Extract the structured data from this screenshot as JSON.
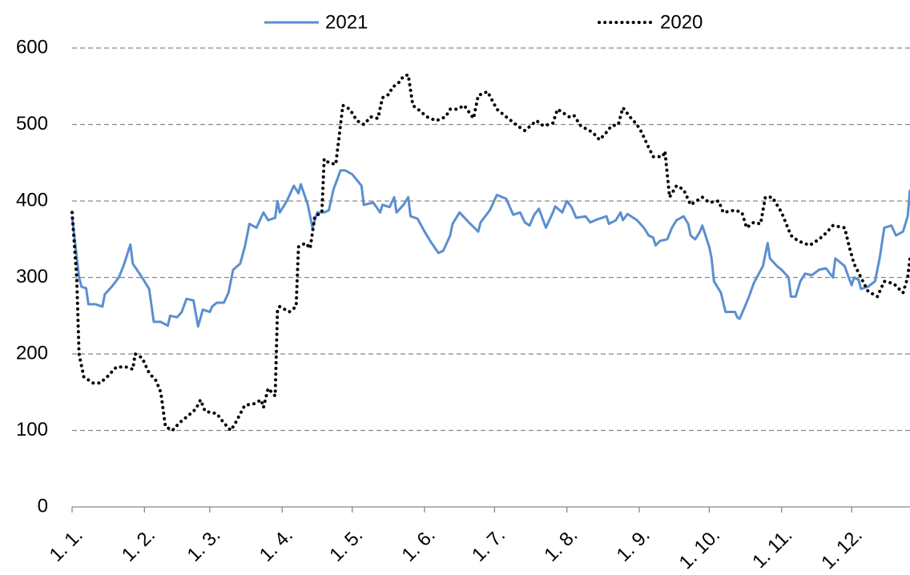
{
  "chart_data": {
    "type": "line",
    "series": [
      {
        "name": "2021",
        "color": "#5b8fd0",
        "line_style": "solid",
        "x": [
          0,
          3,
          4,
          6,
          7,
          10,
          13,
          14,
          17,
          20,
          22,
          25,
          26,
          30,
          33,
          35,
          38,
          41,
          42,
          45,
          47,
          49,
          52,
          54,
          56,
          59,
          60,
          62,
          65,
          67,
          69,
          72,
          74,
          76,
          79,
          82,
          84,
          87,
          88,
          89,
          92,
          95,
          97,
          98,
          101,
          103,
          105,
          108,
          110,
          112,
          115,
          117,
          120,
          124,
          125,
          129,
          132,
          133,
          136,
          138,
          139,
          142,
          144,
          145,
          148,
          151,
          154,
          157,
          159,
          162,
          163,
          166,
          170,
          174,
          175,
          179,
          182,
          186,
          189,
          192,
          194,
          196,
          198,
          200,
          203,
          206,
          207,
          210,
          212,
          214,
          216,
          220,
          222,
          225,
          229,
          230,
          233,
          235,
          236,
          238,
          242,
          245,
          247,
          249,
          250,
          252,
          255,
          257,
          259,
          262,
          264,
          265,
          267,
          269,
          270,
          273,
          274,
          275,
          277,
          278,
          280,
          284,
          285,
          286,
          288,
          290,
          292,
          293,
          296,
          298,
          299,
          302,
          304,
          307,
          308,
          310,
          312,
          313,
          314,
          317,
          320,
          323,
          326,
          327,
          331,
          333,
          334,
          335,
          337,
          338,
          341,
          344,
          346,
          348,
          351,
          353,
          356,
          358,
          359
        ],
        "values": [
          380,
          300,
          288,
          286,
          265,
          265,
          262,
          278,
          288,
          300,
          315,
          343,
          318,
          300,
          285,
          242,
          242,
          237,
          250,
          248,
          255,
          272,
          270,
          236,
          258,
          255,
          262,
          267,
          267,
          280,
          310,
          318,
          340,
          370,
          365,
          385,
          375,
          378,
          400,
          385,
          400,
          420,
          410,
          422,
          395,
          365,
          385,
          385,
          388,
          415,
          440,
          440,
          435,
          420,
          395,
          398,
          385,
          395,
          392,
          405,
          385,
          395,
          405,
          380,
          377,
          360,
          345,
          332,
          335,
          355,
          370,
          385,
          372,
          360,
          372,
          388,
          408,
          403,
          382,
          385,
          372,
          368,
          382,
          390,
          365,
          385,
          393,
          385,
          400,
          392,
          378,
          380,
          372,
          376,
          380,
          370,
          375,
          385,
          375,
          383,
          375,
          365,
          355,
          352,
          342,
          348,
          350,
          365,
          375,
          380,
          370,
          355,
          350,
          360,
          368,
          340,
          325,
          295,
          285,
          280,
          255,
          255,
          248,
          246,
          260,
          275,
          292,
          298,
          315,
          345,
          325,
          315,
          310,
          300,
          275,
          275,
          295,
          300,
          305,
          303,
          310,
          312,
          300,
          325,
          315,
          298,
          290,
          300,
          297,
          285,
          288,
          295,
          325,
          365,
          368,
          355,
          360,
          380,
          415
        ]
      },
      {
        "name": "2020",
        "color": "#000000",
        "line_style": "dotted",
        "x": [
          0,
          2,
          3,
          5,
          9,
          12,
          15,
          19,
          23,
          26,
          27,
          30,
          33,
          36,
          38,
          40,
          43,
          46,
          50,
          53,
          55,
          57,
          62,
          65,
          68,
          70,
          74,
          78,
          81,
          82,
          84,
          87,
          88,
          89,
          93,
          96,
          97,
          100,
          102,
          104,
          107,
          108,
          110,
          113,
          116,
          119,
          122,
          125,
          128,
          131,
          133,
          136,
          137,
          140,
          142,
          144,
          146,
          149,
          152,
          156,
          160,
          162,
          165,
          168,
          172,
          174,
          178,
          182,
          186,
          191,
          194,
          199,
          202,
          206,
          208,
          213,
          215,
          218,
          223,
          226,
          229,
          231,
          234,
          236,
          239,
          242,
          244,
          247,
          249,
          253,
          254,
          256,
          259,
          262,
          265,
          270,
          273,
          277,
          279,
          284,
          287,
          289,
          292,
          295,
          297,
          300,
          304,
          308,
          311,
          316,
          320,
          323,
          326,
          331,
          333,
          335,
          338,
          341,
          345,
          348,
          352,
          356,
          358,
          359
        ],
        "values": [
          385,
          300,
          200,
          170,
          162,
          162,
          170,
          183,
          183,
          180,
          200,
          195,
          175,
          165,
          150,
          105,
          100,
          110,
          120,
          128,
          140,
          125,
          122,
          110,
          100,
          110,
          133,
          135,
          140,
          130,
          155,
          145,
          258,
          262,
          255,
          262,
          340,
          345,
          338,
          380,
          385,
          455,
          450,
          448,
          525,
          520,
          505,
          500,
          510,
          508,
          535,
          540,
          548,
          555,
          563,
          565,
          525,
          518,
          510,
          505,
          510,
          520,
          520,
          525,
          508,
          538,
          543,
          520,
          510,
          498,
          492,
          505,
          498,
          502,
          520,
          510,
          512,
          498,
          490,
          480,
          490,
          498,
          500,
          522,
          510,
          500,
          490,
          470,
          458,
          458,
          465,
          405,
          420,
          415,
          395,
          405,
          398,
          400,
          385,
          388,
          385,
          365,
          372,
          370,
          405,
          405,
          385,
          355,
          348,
          342,
          350,
          358,
          368,
          365,
          340,
          318,
          300,
          282,
          275,
          295,
          292,
          280,
          300,
          325
        ]
      }
    ],
    "xlim": [
      0,
      359
    ],
    "xticks": [
      {
        "value": 0,
        "label": "1. 1."
      },
      {
        "value": 31,
        "label": "1. 2."
      },
      {
        "value": 59,
        "label": "1. 3."
      },
      {
        "value": 90,
        "label": "1. 4."
      },
      {
        "value": 120,
        "label": "1. 5."
      },
      {
        "value": 151,
        "label": "1. 6."
      },
      {
        "value": 181,
        "label": "1. 7."
      },
      {
        "value": 212,
        "label": "1. 8."
      },
      {
        "value": 243,
        "label": "1. 9."
      },
      {
        "value": 273,
        "label": "1. 10."
      },
      {
        "value": 304,
        "label": "1. 11."
      },
      {
        "value": 334,
        "label": "1. 12."
      }
    ],
    "ylim": [
      0,
      600
    ],
    "yticks": [
      0,
      100,
      200,
      300,
      400,
      500,
      600
    ],
    "grid": true,
    "legend": "top"
  }
}
